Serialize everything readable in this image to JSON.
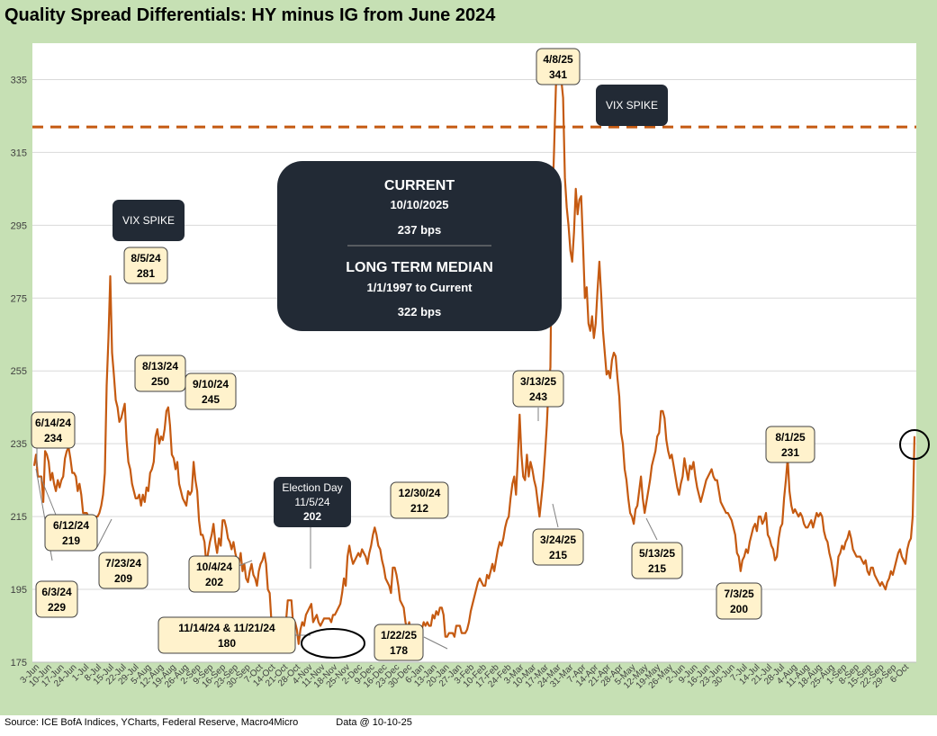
{
  "title": "Quality Spread Differentials: HY minus IG from June 2024",
  "footer": {
    "source": "Source: ICE BofA Indices, YCharts, Federal Reserve, Macro4Micro",
    "data_date": "Data @ 10-10-25"
  },
  "colors": {
    "line": "#c55a11",
    "frame": "#c6e0b4",
    "dark_box": "#222a35",
    "callout_fill": "#fff2cc"
  },
  "chart_data": {
    "type": "line",
    "title": "Quality Spread Differentials: HY minus IG from June 2024",
    "ylim": [
      175,
      345
    ],
    "yticks": [
      175,
      195,
      215,
      235,
      255,
      275,
      295,
      315,
      335
    ],
    "grid": "horizontal",
    "xtick_labels": [
      "3-Jun",
      "10-Jun",
      "17-Jun",
      "24-Jun",
      "1-Jul",
      "8-Jul",
      "15-Jul",
      "22-Jul",
      "29-Jul",
      "5-Aug",
      "12-Aug",
      "19-Aug",
      "26-Aug",
      "2-Sep",
      "9-Sep",
      "16-Sep",
      "23-Sep",
      "30-Sep",
      "7-Oct",
      "14-Oct",
      "21-Oct",
      "28-Oct",
      "4-Nov",
      "11-Nov",
      "18-Nov",
      "25-Nov",
      "2-Dec",
      "9-Dec",
      "16-Dec",
      "23-Dec",
      "30-Dec",
      "6-Jan",
      "13-Jan",
      "20-Jan",
      "27-Jan",
      "3-Feb",
      "10-Feb",
      "17-Feb",
      "24-Feb",
      "3-Mar",
      "10-Mar",
      "17-Mar",
      "24-Mar",
      "31-Mar",
      "7-Apr",
      "14-Apr",
      "21-Apr",
      "28-Apr",
      "5-May",
      "12-May",
      "19-May",
      "26-May",
      "2-Jun",
      "9-Jun",
      "16-Jun",
      "23-Jun",
      "30-Jun",
      "7-Jul",
      "14-Jul",
      "21-Jul",
      "28-Jul",
      "4-Aug",
      "11-Aug",
      "18-Aug",
      "25-Aug",
      "1-Sep",
      "8-Sep",
      "15-Sep",
      "22-Sep",
      "29-Sep",
      "6-Oct"
    ],
    "series": [
      {
        "values": [
          229,
          232,
          226,
          226,
          226,
          219,
          233,
          232,
          230,
          225,
          227,
          224,
          222,
          225,
          223,
          225,
          226,
          231,
          233,
          234,
          231,
          227,
          227,
          226,
          222,
          224,
          221,
          216,
          216,
          216,
          215,
          212,
          210,
          213,
          215,
          215,
          216,
          218,
          221,
          227,
          251,
          264,
          281,
          260,
          254,
          247,
          245,
          241,
          242,
          244,
          246,
          236,
          230,
          228,
          224,
          222,
          220,
          220,
          221,
          218,
          221,
          219,
          223,
          222,
          227,
          228,
          230,
          237,
          239,
          235,
          237,
          236,
          239,
          244,
          245,
          240,
          232,
          231,
          228,
          230,
          224,
          222,
          220,
          219,
          218,
          222,
          221,
          222,
          230,
          225,
          222,
          214,
          210,
          210,
          208,
          202,
          205,
          208,
          210,
          213,
          208,
          205,
          209,
          207,
          214,
          214,
          212,
          209,
          208,
          206,
          208,
          205,
          203,
          202,
          205,
          200,
          202,
          198,
          197,
          200,
          202,
          199,
          198,
          196,
          200,
          202,
          203,
          205,
          202,
          195,
          194,
          186,
          186,
          186,
          187,
          181,
          186,
          186,
          186,
          186,
          192,
          192,
          192,
          185,
          186,
          184,
          180,
          184,
          186,
          185,
          188,
          189,
          190,
          191,
          186,
          187,
          188,
          186,
          185,
          186,
          187,
          187,
          187,
          187,
          186,
          188,
          188,
          189,
          190,
          191,
          194,
          198,
          196,
          204,
          207,
          204,
          202,
          203,
          204,
          205,
          204,
          206,
          205,
          204,
          202,
          205,
          207,
          210,
          212,
          210,
          207,
          206,
          203,
          201,
          198,
          197,
          196,
          194,
          201,
          201,
          199,
          196,
          192,
          191,
          190,
          186,
          184,
          186,
          183,
          183,
          180,
          178,
          183,
          183,
          184,
          186,
          185,
          186,
          185,
          185,
          188,
          187,
          189,
          188,
          190,
          190,
          188,
          182,
          182,
          183,
          183,
          183,
          182,
          185,
          185,
          185,
          183,
          183,
          183,
          184,
          186,
          189,
          191,
          193,
          195,
          197,
          198,
          197,
          196,
          196,
          199,
          198,
          200,
          202,
          200,
          203,
          206,
          208,
          207,
          209,
          212,
          214,
          215,
          220,
          224,
          226,
          221,
          231,
          243,
          232,
          226,
          225,
          232,
          226,
          230,
          228,
          225,
          223,
          219,
          215,
          220,
          225,
          232,
          240,
          251,
          256,
          300,
          315,
          333,
          341,
          341,
          335,
          330,
          308,
          300,
          295,
          288,
          285,
          293,
          305,
          298,
          302,
          303,
          290,
          275,
          278,
          268,
          266,
          270,
          264,
          268,
          277,
          285,
          276,
          266,
          260,
          254,
          255,
          253,
          258,
          260,
          259,
          253,
          248,
          238,
          235,
          228,
          225,
          220,
          216,
          215,
          213,
          217,
          218,
          222,
          226,
          220,
          216,
          219,
          222,
          225,
          229,
          231,
          233,
          237,
          238,
          244,
          244,
          242,
          236,
          233,
          231,
          232,
          229,
          226,
          223,
          221,
          224,
          226,
          231,
          228,
          225,
          229,
          228,
          230,
          226,
          223,
          221,
          219,
          221,
          223,
          225,
          226,
          227,
          228,
          226,
          225,
          225,
          222,
          219,
          218,
          217,
          216,
          216,
          215,
          214,
          212,
          210,
          205,
          204,
          200,
          203,
          204,
          206,
          205,
          208,
          210,
          212,
          213,
          211,
          215,
          215,
          213,
          214,
          216,
          210,
          209,
          207,
          206,
          203,
          204,
          209,
          212,
          213,
          220,
          225,
          231,
          222,
          218,
          216,
          217,
          216,
          215,
          216,
          215,
          213,
          212,
          212,
          213,
          214,
          212,
          214,
          216,
          215,
          216,
          215,
          211,
          209,
          208,
          205,
          203,
          200,
          196,
          199,
          204,
          205,
          207,
          206,
          208,
          209,
          211,
          209,
          206,
          205,
          204,
          204,
          204,
          203,
          202,
          203,
          200,
          199,
          201,
          201,
          199,
          198,
          197,
          196,
          197,
          196,
          195,
          197,
          198,
          200,
          199,
          201,
          203,
          205,
          206,
          204,
          203,
          202,
          206,
          208,
          209,
          215,
          237
        ]
      }
    ],
    "reference_lines": [
      {
        "label": "LONG TERM MEDIAN",
        "value": 322,
        "style": "dashed"
      }
    ],
    "callouts": [
      {
        "date": "6/14/24",
        "value": "234"
      },
      {
        "date": "6/12/24",
        "value": "219"
      },
      {
        "date": "6/3/24",
        "value": "229"
      },
      {
        "date": "7/23/24",
        "value": "209"
      },
      {
        "date": "8/5/24",
        "value": "281"
      },
      {
        "date": "8/13/24",
        "value": "250"
      },
      {
        "date": "9/10/24",
        "value": "245"
      },
      {
        "date": "10/4/24",
        "value": "202"
      },
      {
        "date": "11/14/24 & 11/21/24",
        "value": "180"
      },
      {
        "date": "12/30/24",
        "value": "212"
      },
      {
        "date": "1/22/25",
        "value": "178"
      },
      {
        "date": "3/13/25",
        "value": "243"
      },
      {
        "date": "3/24/25",
        "value": "215"
      },
      {
        "date": "4/8/25",
        "value": "341"
      },
      {
        "date": "5/13/25",
        "value": "215"
      },
      {
        "date": "7/3/25",
        "value": "200"
      },
      {
        "date": "8/1/25",
        "value": "231"
      }
    ],
    "dark_labels": [
      {
        "text": "VIX SPIKE"
      },
      {
        "text": "VIX SPIKE"
      },
      {
        "lines": [
          "Election Day",
          "11/5/24",
          "202"
        ]
      }
    ],
    "summary_box": {
      "current_heading": "CURRENT",
      "current_date": "10/10/2025",
      "current_value": "237 bps",
      "median_heading": "LONG TERM MEDIAN",
      "median_range": "1/1/1997 to Current",
      "median_value": "322 bps"
    }
  }
}
